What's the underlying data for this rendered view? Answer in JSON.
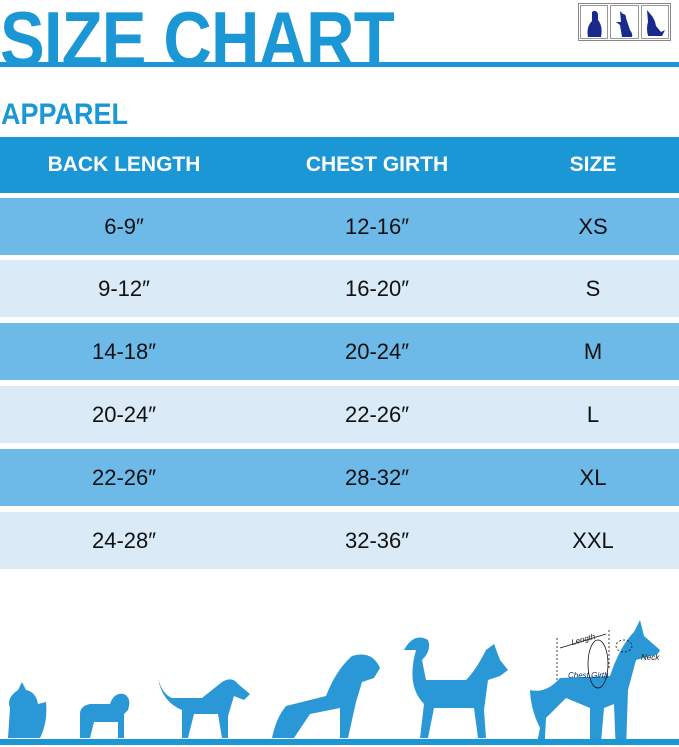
{
  "title": "SIZE CHART",
  "section": "APPAREL",
  "columns": [
    "BACK LENGTH",
    "CHEST GIRTH",
    "SIZE"
  ],
  "rows": [
    {
      "back": "6-9″",
      "chest": "12-16″",
      "size": "XS"
    },
    {
      "back": "9-12″",
      "chest": "16-20″",
      "size": "S"
    },
    {
      "back": "14-18″",
      "chest": "20-24″",
      "size": "M"
    },
    {
      "back": "20-24″",
      "chest": "22-26″",
      "size": "L"
    },
    {
      "back": "22-26″",
      "chest": "28-32″",
      "size": "XL"
    },
    {
      "back": "24-28″",
      "chest": "32-36″",
      "size": "XXL"
    }
  ],
  "diagram": {
    "length": "Length",
    "neck": "Neck",
    "chest_girth": "Chest Girth"
  },
  "colors": {
    "brand": "#1b97d6",
    "row_dark": "#6db9e8",
    "row_light": "#daeaf7",
    "logo": "#1a2a8c"
  }
}
